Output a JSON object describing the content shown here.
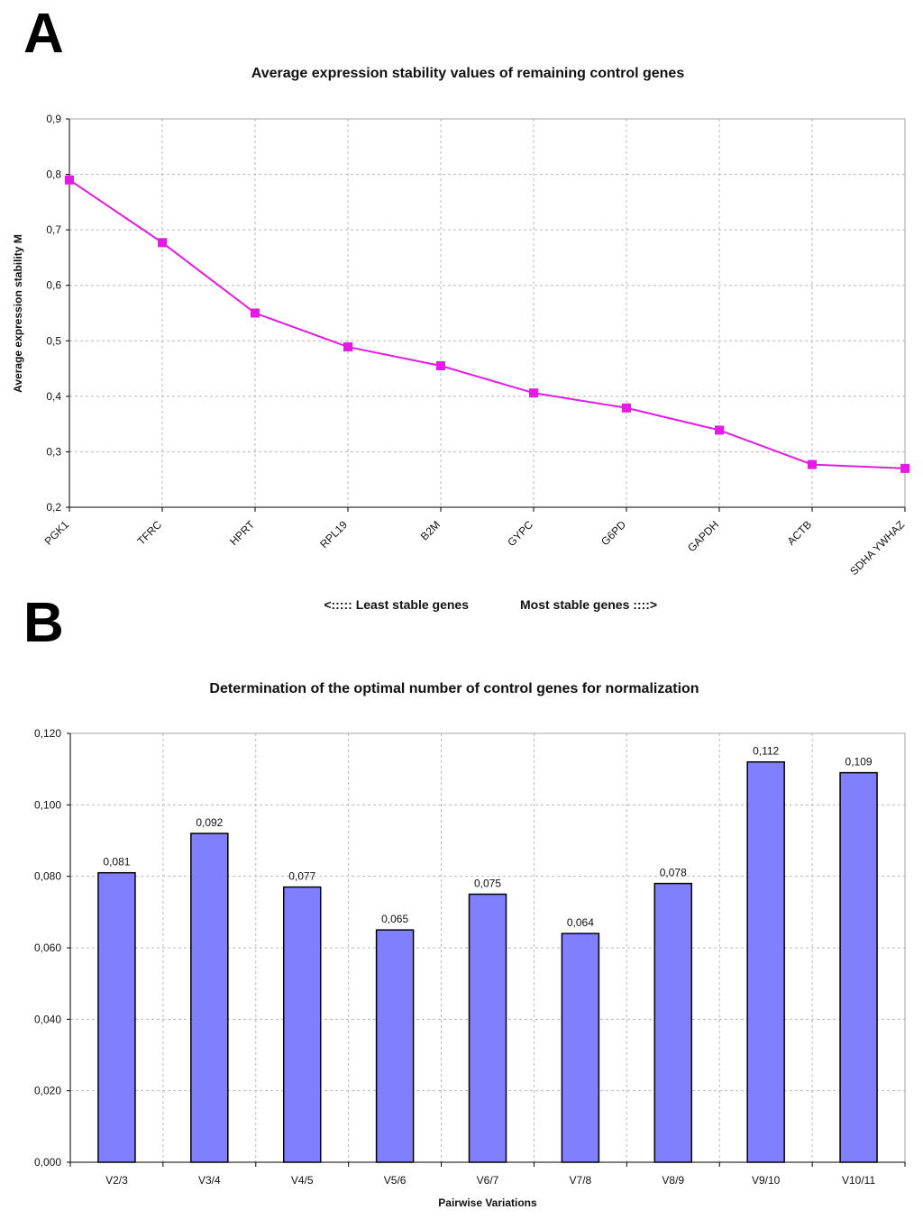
{
  "chart_data": [
    {
      "panel": "A",
      "type": "line",
      "title": "Average expression stability values of remaining control genes",
      "xlabel": "",
      "ylabel": "Average expression stability M",
      "categories": [
        "PGK1",
        "TFRC",
        "HPRT",
        "RPL19",
        "B2M",
        "GYPC",
        "G6PD",
        "GAPDH",
        "ACTB",
        "SDHA YWHAZ"
      ],
      "values": [
        0.79,
        0.677,
        0.55,
        0.489,
        0.455,
        0.406,
        0.379,
        0.339,
        0.277,
        0.27
      ],
      "ylim": [
        0.2,
        0.9
      ],
      "yticks": [
        0.2,
        0.3,
        0.4,
        0.5,
        0.6,
        0.7,
        0.8,
        0.9
      ],
      "ytick_labels": [
        "0,2",
        "0,3",
        "0,4",
        "0,5",
        "0,6",
        "0,7",
        "0,8",
        "0,9"
      ],
      "grid": true,
      "line_color": "#e619e6",
      "annotation_left": "<:::::  Least stable genes",
      "annotation_right": "Most stable genes ::::>"
    },
    {
      "panel": "B",
      "type": "bar",
      "title": "Determination of the optimal number of control genes for normalization",
      "xlabel": "Pairwise Variations",
      "ylabel": "",
      "categories": [
        "V2/3",
        "V3/4",
        "V4/5",
        "V5/6",
        "V6/7",
        "V7/8",
        "V8/9",
        "V9/10",
        "V10/11"
      ],
      "values": [
        0.081,
        0.092,
        0.077,
        0.065,
        0.075,
        0.064,
        0.078,
        0.112,
        0.109
      ],
      "value_labels": [
        "0,081",
        "0,092",
        "0,077",
        "0,065",
        "0,075",
        "0,064",
        "0,078",
        "0,112",
        "0,109"
      ],
      "ylim": [
        0,
        0.12
      ],
      "yticks": [
        0,
        0.02,
        0.04,
        0.06,
        0.08,
        0.1,
        0.12
      ],
      "ytick_labels": [
        "0,000",
        "0,020",
        "0,040",
        "0,060",
        "0,080",
        "0,100",
        "0,120"
      ],
      "grid": true,
      "bar_color": "#8080ff"
    }
  ]
}
